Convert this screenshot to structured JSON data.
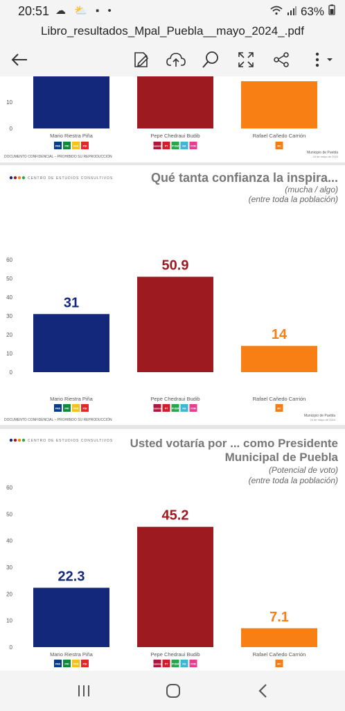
{
  "status": {
    "time": "20:51",
    "battery": "63%"
  },
  "file": {
    "title": "Libro_resultados_Mpal_Puebla__mayo_2024_.pdf"
  },
  "toolbar": {
    "icons": [
      "back-arrow-icon",
      "edit-pdf-icon",
      "cloud-upload-icon",
      "search-icon",
      "fullscreen-icon",
      "share-icon",
      "more-menu-icon"
    ]
  },
  "common": {
    "footer_left": "DOCUMENTO CONFIDENCIAL – PROHIBIDO SU REPRODUCCIÓN",
    "footer_right": "Municipio de Puebla",
    "footer_date": "24 de mayo de 2024",
    "logo_text": "CENTRO DE ESTUDIOS CONSULTIVOS",
    "candidates": [
      "Mario Riestra Piña",
      "Pepe Chedraui Budib",
      "Rafael Cañedo Carrión"
    ],
    "colors": [
      "#13287a",
      "#9e1a21",
      "#f77f13"
    ],
    "party_badges": [
      [
        {
          "t": "PAN",
          "c": "#0a3a8c"
        },
        {
          "t": "PRI",
          "c": "#0f8a3c"
        },
        {
          "t": "PRD",
          "c": "#f0c418"
        },
        {
          "t": "PSI",
          "c": "#e3262b"
        }
      ],
      [
        {
          "t": "morena",
          "c": "#b0153b"
        },
        {
          "t": "PT",
          "c": "#d21e2b"
        },
        {
          "t": "PVEM",
          "c": "#2aa54a"
        },
        {
          "t": "NA",
          "c": "#3fb6d4"
        },
        {
          "t": "FXM",
          "c": "#e33e8f"
        }
      ],
      [
        {
          "t": "MC",
          "c": "#f47c14"
        }
      ]
    ]
  },
  "pages": {
    "page0": {
      "axis_labels": [
        "0",
        "10"
      ]
    },
    "page1": {
      "title": "Qué tanta confianza la inspira...",
      "subtitle1": "(mucha / algo)",
      "subtitle2": "(entre toda la población)",
      "axis_labels": [
        "0",
        "10",
        "20",
        "30",
        "40",
        "50",
        "60"
      ]
    },
    "page2": {
      "title1": "Usted votaría por ... como Presidente",
      "title2": "Municipal de Puebla",
      "subtitle1": "(Potencial de voto)",
      "subtitle2": "(entre toda la población)",
      "axis_labels": [
        "0",
        "10",
        "20",
        "30",
        "40",
        "50",
        "60"
      ]
    }
  },
  "chart_data": [
    {
      "type": "bar",
      "title": "Qué tanta confianza la inspira...",
      "categories": [
        "Mario Riestra Piña",
        "Pepe Chedraui Budib",
        "Rafael Cañedo Carrión"
      ],
      "values": [
        31,
        50.9,
        14
      ],
      "value_labels": [
        "31",
        "50.9",
        "14"
      ],
      "ylim": [
        0,
        60
      ],
      "colors": [
        "#13287a",
        "#9e1a21",
        "#f77f13"
      ],
      "grid": false
    },
    {
      "type": "bar",
      "title": "Usted votaría por ... como Presidente Municipal de Puebla",
      "categories": [
        "Mario Riestra Piña",
        "Pepe Chedraui Budib",
        "Rafael Cañedo Carrión"
      ],
      "values": [
        22.3,
        45.2,
        7.1
      ],
      "value_labels": [
        "22.3",
        "45.2",
        "7.1"
      ],
      "ylim": [
        0,
        60
      ],
      "colors": [
        "#13287a",
        "#9e1a21",
        "#f77f13"
      ],
      "grid": false
    }
  ],
  "navbar": {
    "icons": [
      "recent-apps-icon",
      "home-icon",
      "back-nav-icon"
    ]
  }
}
